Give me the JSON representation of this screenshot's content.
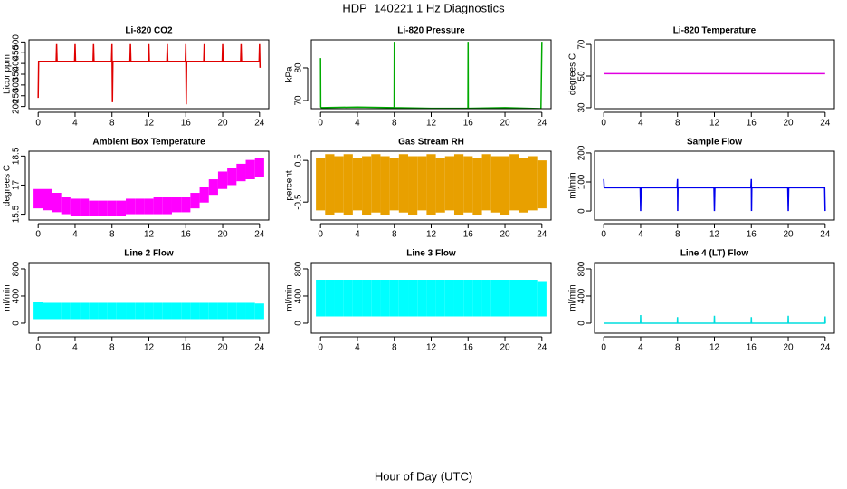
{
  "title": "HDP_140221 1 Hz Diagnostics",
  "xlabel": "Hour of Day (UTC)",
  "chart_data": [
    {
      "type": "line",
      "title": "Li-820 CO2",
      "ylabel": "Licor ppm",
      "color": "#e00000",
      "xlim": [
        -1,
        25
      ],
      "xticks": [
        0,
        4,
        8,
        12,
        16,
        20,
        24
      ],
      "ylim": [
        190,
        510
      ],
      "yticks": [
        200,
        250,
        300,
        350,
        400,
        450,
        500
      ],
      "x": [
        0,
        0.05,
        0.3,
        1.95,
        2,
        2.05,
        3.95,
        4,
        4.05,
        5.95,
        6,
        6.05,
        7.95,
        8,
        8.05,
        8.1,
        9.95,
        10,
        10.05,
        11.95,
        12,
        12.05,
        13.95,
        14,
        14.05,
        15.95,
        16,
        16.05,
        16.1,
        17.95,
        18,
        18.05,
        19.95,
        20,
        20.05,
        21.95,
        22,
        22.05,
        23.95,
        24,
        24.05
      ],
      "values": [
        240,
        410,
        410,
        410,
        490,
        410,
        410,
        490,
        410,
        410,
        490,
        410,
        410,
        490,
        220,
        410,
        410,
        490,
        410,
        410,
        490,
        410,
        410,
        490,
        410,
        410,
        490,
        210,
        410,
        410,
        490,
        410,
        410,
        490,
        410,
        410,
        490,
        410,
        410,
        490,
        380
      ]
    },
    {
      "type": "line",
      "title": "Li-820 Pressure",
      "ylabel": "kPa",
      "color": "#00aa00",
      "xlim": [
        -1,
        25
      ],
      "xticks": [
        0,
        4,
        8,
        12,
        16,
        20,
        24
      ],
      "ylim": [
        67.5,
        88.6
      ],
      "yticks": [
        70,
        80
      ],
      "x": [
        0,
        0.02,
        0.1,
        4,
        7.98,
        8,
        8.02,
        12,
        15.98,
        16,
        16.02,
        20,
        23.9,
        24
      ],
      "values": [
        83,
        68,
        67.8,
        68,
        67.8,
        88,
        67.8,
        67.6,
        67.6,
        88,
        67.6,
        67.8,
        67.5,
        88
      ]
    },
    {
      "type": "line",
      "title": "Li-820 Temperature",
      "ylabel": "degrees C",
      "color": "#e000e0",
      "xlim": [
        -1,
        25
      ],
      "xticks": [
        0,
        4,
        8,
        12,
        16,
        20,
        24
      ],
      "ylim": [
        29.4,
        72.9
      ],
      "yticks": [
        30,
        50,
        70
      ],
      "x": [
        0,
        24
      ],
      "values": [
        51.5,
        51.5
      ]
    },
    {
      "type": "band",
      "title": "Ambient Box Temperature",
      "ylabel": "degrees C",
      "color": "#ff00ff",
      "xlim": [
        -1,
        25
      ],
      "xticks": [
        0,
        4,
        8,
        12,
        16,
        20,
        24
      ],
      "ylim": [
        15.2,
        18.75
      ],
      "yticks": [
        15.5,
        17.0,
        18.5
      ],
      "x": [
        0,
        1,
        2,
        3,
        4,
        5,
        6,
        7,
        8,
        9,
        10,
        11,
        12,
        13,
        14,
        15,
        16,
        17,
        18,
        19,
        20,
        21,
        22,
        23,
        24
      ],
      "low": [
        15.8,
        15.7,
        15.6,
        15.5,
        15.4,
        15.4,
        15.4,
        15.4,
        15.4,
        15.4,
        15.5,
        15.5,
        15.5,
        15.5,
        15.5,
        15.6,
        15.6,
        15.8,
        16.1,
        16.5,
        16.8,
        17.0,
        17.2,
        17.3,
        17.4
      ],
      "high": [
        16.8,
        16.8,
        16.6,
        16.4,
        16.3,
        16.3,
        16.2,
        16.2,
        16.2,
        16.2,
        16.3,
        16.3,
        16.3,
        16.4,
        16.4,
        16.4,
        16.4,
        16.6,
        16.9,
        17.3,
        17.7,
        17.9,
        18.1,
        18.3,
        18.4
      ]
    },
    {
      "type": "band",
      "title": "Gas Stream RH",
      "ylabel": "percent",
      "color": "#e8a000",
      "xlim": [
        -1,
        25
      ],
      "xticks": [
        0,
        4,
        8,
        12,
        16,
        20,
        24
      ],
      "ylim": [
        -0.93,
        0.72
      ],
      "yticks": [
        -0.5,
        0.5
      ],
      "x": [
        0,
        1,
        2,
        3,
        4,
        5,
        6,
        7,
        8,
        9,
        10,
        11,
        12,
        13,
        14,
        15,
        16,
        17,
        18,
        19,
        20,
        21,
        22,
        23,
        24
      ],
      "low": [
        -0.7,
        -0.8,
        -0.75,
        -0.8,
        -0.7,
        -0.8,
        -0.75,
        -0.8,
        -0.7,
        -0.75,
        -0.8,
        -0.7,
        -0.8,
        -0.75,
        -0.7,
        -0.8,
        -0.75,
        -0.8,
        -0.7,
        -0.75,
        -0.8,
        -0.7,
        -0.75,
        -0.7,
        -0.65
      ],
      "high": [
        0.55,
        0.65,
        0.6,
        0.65,
        0.55,
        0.6,
        0.65,
        0.6,
        0.55,
        0.65,
        0.6,
        0.6,
        0.65,
        0.55,
        0.6,
        0.65,
        0.6,
        0.55,
        0.65,
        0.6,
        0.6,
        0.65,
        0.55,
        0.6,
        0.5
      ]
    },
    {
      "type": "line",
      "title": "Sample Flow",
      "ylabel": "ml/min",
      "color": "#0000ee",
      "xlim": [
        -1,
        25
      ],
      "xticks": [
        0,
        4,
        8,
        12,
        16,
        20,
        24
      ],
      "ylim": [
        -31,
        206
      ],
      "yticks": [
        0,
        100,
        200
      ],
      "x": [
        0,
        0.05,
        3.95,
        4,
        4.05,
        7.95,
        8,
        8.02,
        8.05,
        11.95,
        12,
        12.05,
        15.95,
        16,
        16.02,
        16.05,
        19.95,
        20,
        20.05,
        23.95,
        24
      ],
      "values": [
        110,
        80,
        80,
        0,
        80,
        80,
        110,
        0,
        80,
        80,
        0,
        80,
        80,
        110,
        0,
        80,
        80,
        0,
        80,
        80,
        0
      ]
    },
    {
      "type": "band",
      "title": "Line 2 Flow",
      "ylabel": "ml/min",
      "color": "#00ffff",
      "xlim": [
        -1,
        25
      ],
      "xticks": [
        0,
        4,
        8,
        12,
        16,
        20,
        24
      ],
      "ylim": [
        -147,
        893
      ],
      "yticks": [
        0,
        400,
        800
      ],
      "x": [
        0,
        1,
        2,
        3,
        4,
        5,
        6,
        7,
        8,
        9,
        10,
        11,
        12,
        13,
        14,
        15,
        16,
        17,
        18,
        19,
        20,
        21,
        22,
        23,
        24
      ],
      "low": [
        60,
        60,
        60,
        60,
        60,
        60,
        60,
        60,
        60,
        60,
        60,
        60,
        60,
        60,
        60,
        60,
        60,
        60,
        60,
        60,
        60,
        60,
        60,
        60,
        60
      ],
      "high": [
        310,
        300,
        300,
        300,
        300,
        300,
        300,
        300,
        300,
        300,
        300,
        300,
        300,
        300,
        300,
        300,
        300,
        300,
        300,
        300,
        300,
        300,
        300,
        300,
        290
      ]
    },
    {
      "type": "band",
      "title": "Line 3 Flow",
      "ylabel": "ml/min",
      "color": "#00ffff",
      "xlim": [
        -1,
        25
      ],
      "xticks": [
        0,
        4,
        8,
        12,
        16,
        20,
        24
      ],
      "ylim": [
        -147,
        893
      ],
      "yticks": [
        0,
        400,
        800
      ],
      "x": [
        0,
        1,
        2,
        3,
        4,
        5,
        6,
        7,
        8,
        9,
        10,
        11,
        12,
        13,
        14,
        15,
        16,
        17,
        18,
        19,
        20,
        21,
        22,
        23,
        24
      ],
      "low": [
        100,
        100,
        100,
        100,
        100,
        100,
        100,
        100,
        100,
        100,
        100,
        100,
        100,
        100,
        100,
        100,
        100,
        100,
        100,
        100,
        100,
        100,
        100,
        100,
        100
      ],
      "high": [
        640,
        640,
        640,
        640,
        640,
        640,
        640,
        640,
        640,
        640,
        640,
        640,
        640,
        640,
        640,
        640,
        640,
        640,
        640,
        640,
        640,
        640,
        640,
        640,
        620
      ]
    },
    {
      "type": "line",
      "title": "Line 4 (LT) Flow",
      "ylabel": "ml/min",
      "color": "#00dddd",
      "xlim": [
        -1,
        25
      ],
      "xticks": [
        0,
        4,
        8,
        12,
        16,
        20,
        24
      ],
      "ylim": [
        -147,
        893
      ],
      "yticks": [
        0,
        400,
        800
      ],
      "x": [
        0,
        3.98,
        4,
        4.02,
        7.98,
        8,
        8.02,
        11.98,
        12,
        12.02,
        15.98,
        16,
        16.02,
        19.98,
        20,
        20.02,
        23.98,
        24,
        24.02
      ],
      "values": [
        0,
        0,
        120,
        0,
        0,
        90,
        0,
        0,
        110,
        0,
        0,
        90,
        0,
        0,
        110,
        0,
        0,
        100,
        0
      ]
    }
  ]
}
